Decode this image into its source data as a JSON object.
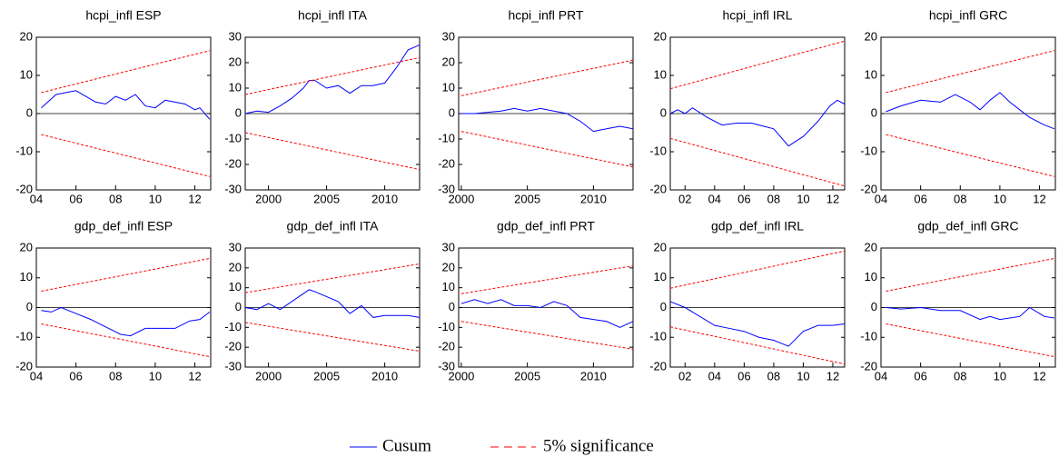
{
  "chart_data": [
    {
      "type": "line",
      "title": "hcpi_infl ESP",
      "xlim": [
        2004,
        2012.8
      ],
      "ylim": [
        -20,
        20
      ],
      "xticks": [
        {
          "value": 2004,
          "label": "04"
        },
        {
          "value": 2006,
          "label": "06"
        },
        {
          "value": 2008,
          "label": "08"
        },
        {
          "value": 2010,
          "label": "10"
        },
        {
          "value": 2012,
          "label": "12"
        }
      ],
      "yticks": [
        -20,
        -10,
        0,
        10,
        20
      ],
      "series": [
        {
          "color": "#0000ff",
          "x": [
            2004.25,
            2005,
            2006,
            2007,
            2007.5,
            2008,
            2008.5,
            2009,
            2009.5,
            2010,
            2010.5,
            2011,
            2011.5,
            2012,
            2012.25,
            2012.75
          ],
          "values": [
            1.5,
            5,
            6,
            3,
            2.5,
            4.5,
            3.5,
            5,
            2,
            1.5,
            3.5,
            3,
            2.5,
            1,
            1.5,
            -1.5
          ]
        },
        {
          "color": "#ff0000",
          "dashed": true,
          "x": [
            2004.25,
            2012.75
          ],
          "values": [
            5.5,
            16.5
          ]
        },
        {
          "color": "#ff0000",
          "dashed": true,
          "x": [
            2004.25,
            2012.75
          ],
          "values": [
            -5.5,
            -16.5
          ]
        }
      ]
    },
    {
      "type": "line",
      "title": "hcpi_infl ITA",
      "xlim": [
        1998,
        2013
      ],
      "ylim": [
        -30,
        30
      ],
      "xticks": [
        2000,
        2005,
        2010
      ],
      "yticks": [
        -30,
        -20,
        -10,
        0,
        10,
        20,
        30
      ],
      "series": [
        {
          "color": "#0000ff",
          "x": [
            1998,
            1999,
            2000,
            2001,
            2002,
            2003,
            2003.5,
            2004,
            2005,
            2006,
            2007,
            2008,
            2009,
            2010,
            2011,
            2012,
            2013
          ],
          "values": [
            0,
            1,
            0.5,
            3,
            6,
            10,
            13,
            13,
            10,
            11,
            8,
            11,
            11,
            12,
            18,
            25,
            27
          ]
        },
        {
          "color": "#ff0000",
          "dashed": true,
          "x": [
            1998,
            2013
          ],
          "values": [
            7.5,
            22
          ]
        },
        {
          "color": "#ff0000",
          "dashed": true,
          "x": [
            1998,
            2013
          ],
          "values": [
            -7.5,
            -22
          ]
        }
      ]
    },
    {
      "type": "line",
      "title": "hcpi_infl PRT",
      "xlim": [
        1999.8,
        2013
      ],
      "ylim": [
        -30,
        30
      ],
      "xticks": [
        2000,
        2005,
        2010
      ],
      "yticks": [
        -30,
        -20,
        -10,
        0,
        10,
        20,
        30
      ],
      "series": [
        {
          "color": "#0000ff",
          "x": [
            2000,
            2001,
            2003,
            2004,
            2005,
            2006,
            2007,
            2008,
            2009,
            2010,
            2011,
            2012,
            2013
          ],
          "values": [
            0,
            0,
            1,
            2,
            1,
            2,
            1,
            0,
            -3,
            -7,
            -6,
            -5,
            -6
          ]
        },
        {
          "color": "#ff0000",
          "dashed": true,
          "x": [
            2000,
            2013
          ],
          "values": [
            7,
            21
          ]
        },
        {
          "color": "#ff0000",
          "dashed": true,
          "x": [
            2000,
            2013
          ],
          "values": [
            -7,
            -21
          ]
        }
      ]
    },
    {
      "type": "line",
      "title": "hcpi_infl IRL",
      "xlim": [
        2001,
        2012.8
      ],
      "ylim": [
        -20,
        20
      ],
      "xticks": [
        {
          "value": 2002,
          "label": "02"
        },
        {
          "value": 2004,
          "label": "04"
        },
        {
          "value": 2006,
          "label": "06"
        },
        {
          "value": 2008,
          "label": "08"
        },
        {
          "value": 2010,
          "label": "10"
        },
        {
          "value": 2012,
          "label": "12"
        }
      ],
      "yticks": [
        -20,
        -10,
        0,
        10,
        20
      ],
      "series": [
        {
          "color": "#0000ff",
          "x": [
            2001,
            2001.5,
            2002,
            2002.5,
            2003.5,
            2004.5,
            2005.5,
            2006.5,
            2007,
            2008,
            2009,
            2010,
            2011,
            2011.8,
            2012.3,
            2012.8
          ],
          "values": [
            0,
            1,
            0,
            1.5,
            -1,
            -3,
            -2.5,
            -2.5,
            -3,
            -4,
            -8.5,
            -6,
            -2,
            2,
            3.5,
            2.5
          ]
        },
        {
          "color": "#ff0000",
          "dashed": true,
          "x": [
            2001,
            2012.8
          ],
          "values": [
            6.5,
            19
          ]
        },
        {
          "color": "#ff0000",
          "dashed": true,
          "x": [
            2001,
            2012.8
          ],
          "values": [
            -6.5,
            -19
          ]
        }
      ]
    },
    {
      "type": "line",
      "title": "hcpi_infl GRC",
      "xlim": [
        2004,
        2012.8
      ],
      "ylim": [
        -20,
        20
      ],
      "xticks": [
        {
          "value": 2004,
          "label": "04"
        },
        {
          "value": 2006,
          "label": "06"
        },
        {
          "value": 2008,
          "label": "08"
        },
        {
          "value": 2010,
          "label": "10"
        },
        {
          "value": 2012,
          "label": "12"
        }
      ],
      "yticks": [
        -20,
        -10,
        0,
        10,
        20
      ],
      "series": [
        {
          "color": "#0000ff",
          "x": [
            2004.25,
            2005,
            2006,
            2007,
            2007.75,
            2008.5,
            2009,
            2009.5,
            2010,
            2010.5,
            2011,
            2011.5,
            2012.25,
            2012.75
          ],
          "values": [
            0.5,
            2,
            3.5,
            3,
            5,
            3,
            1,
            3.5,
            5.5,
            3,
            1,
            -1,
            -3,
            -4
          ]
        },
        {
          "color": "#ff0000",
          "dashed": true,
          "x": [
            2004.25,
            2012.75
          ],
          "values": [
            5.5,
            16.5
          ]
        },
        {
          "color": "#ff0000",
          "dashed": true,
          "x": [
            2004.25,
            2012.75
          ],
          "values": [
            -5.5,
            -16.5
          ]
        }
      ]
    },
    {
      "type": "line",
      "title": "gdp_def_infl ESP",
      "xlim": [
        2004,
        2012.8
      ],
      "ylim": [
        -20,
        20
      ],
      "xticks": [
        {
          "value": 2004,
          "label": "04"
        },
        {
          "value": 2006,
          "label": "06"
        },
        {
          "value": 2008,
          "label": "08"
        },
        {
          "value": 2010,
          "label": "10"
        },
        {
          "value": 2012,
          "label": "12"
        }
      ],
      "yticks": [
        -20,
        -10,
        0,
        10,
        20
      ],
      "series": [
        {
          "color": "#0000ff",
          "x": [
            2004.25,
            2004.75,
            2005.25,
            2006,
            2006.75,
            2007.5,
            2008.25,
            2008.75,
            2009.5,
            2010,
            2011,
            2011.75,
            2012.25,
            2012.75
          ],
          "values": [
            -1,
            -1.5,
            0,
            -2,
            -4,
            -6.5,
            -9,
            -9.5,
            -7,
            -7,
            -7,
            -4.5,
            -4,
            -1.5
          ]
        },
        {
          "color": "#ff0000",
          "dashed": true,
          "x": [
            2004.25,
            2012.75
          ],
          "values": [
            5.5,
            16.5
          ]
        },
        {
          "color": "#ff0000",
          "dashed": true,
          "x": [
            2004.25,
            2012.75
          ],
          "values": [
            -5.5,
            -16.5
          ]
        }
      ]
    },
    {
      "type": "line",
      "title": "gdp_def_infl ITA",
      "xlim": [
        1998,
        2013
      ],
      "ylim": [
        -30,
        30
      ],
      "xticks": [
        2000,
        2005,
        2010
      ],
      "yticks": [
        -30,
        -20,
        -10,
        0,
        10,
        20,
        30
      ],
      "series": [
        {
          "color": "#0000ff",
          "x": [
            1998,
            1999,
            2000,
            2001,
            2002,
            2003,
            2003.5,
            2004,
            2006,
            2007,
            2008,
            2009,
            2010,
            2011,
            2012,
            2013
          ],
          "values": [
            0,
            -1,
            2,
            -1,
            3,
            7,
            9,
            8,
            3,
            -3,
            1,
            -5,
            -4,
            -4,
            -4,
            -5
          ]
        },
        {
          "color": "#ff0000",
          "dashed": true,
          "x": [
            1998,
            2013
          ],
          "values": [
            7.5,
            22
          ]
        },
        {
          "color": "#ff0000",
          "dashed": true,
          "x": [
            1998,
            2013
          ],
          "values": [
            -7.5,
            -22
          ]
        }
      ]
    },
    {
      "type": "line",
      "title": "gdp_def_infl PRT",
      "xlim": [
        1999.8,
        2013
      ],
      "ylim": [
        -30,
        30
      ],
      "xticks": [
        2000,
        2005,
        2010
      ],
      "yticks": [
        -30,
        -20,
        -10,
        0,
        10,
        20,
        30
      ],
      "series": [
        {
          "color": "#0000ff",
          "x": [
            2000,
            2001,
            2002,
            2003,
            2004,
            2005,
            2006,
            2007,
            2008,
            2009,
            2010,
            2011,
            2012,
            2013
          ],
          "values": [
            2,
            4,
            2,
            4,
            1,
            1,
            0,
            3,
            1,
            -5,
            -6,
            -7,
            -10,
            -7
          ]
        },
        {
          "color": "#ff0000",
          "dashed": true,
          "x": [
            2000,
            2013
          ],
          "values": [
            7,
            21
          ]
        },
        {
          "color": "#ff0000",
          "dashed": true,
          "x": [
            2000,
            2013
          ],
          "values": [
            -7,
            -21
          ]
        }
      ]
    },
    {
      "type": "line",
      "title": "gdp_def_infl IRL",
      "xlim": [
        2001,
        2012.8
      ],
      "ylim": [
        -20,
        20
      ],
      "xticks": [
        {
          "value": 2002,
          "label": "02"
        },
        {
          "value": 2004,
          "label": "04"
        },
        {
          "value": 2006,
          "label": "06"
        },
        {
          "value": 2008,
          "label": "08"
        },
        {
          "value": 2010,
          "label": "10"
        },
        {
          "value": 2012,
          "label": "12"
        }
      ],
      "yticks": [
        -20,
        -10,
        0,
        10,
        20
      ],
      "series": [
        {
          "color": "#0000ff",
          "x": [
            2001,
            2002,
            2003,
            2004,
            2005,
            2006,
            2007,
            2008,
            2008.5,
            2009,
            2010,
            2011,
            2012,
            2012.8
          ],
          "values": [
            2,
            0,
            -3,
            -6,
            -7,
            -8,
            -10,
            -11,
            -12,
            -13,
            -8,
            -6,
            -6,
            -5.5
          ]
        },
        {
          "color": "#ff0000",
          "dashed": true,
          "x": [
            2001,
            2012.8
          ],
          "values": [
            6.5,
            19
          ]
        },
        {
          "color": "#ff0000",
          "dashed": true,
          "x": [
            2001,
            2012.8
          ],
          "values": [
            -6.5,
            -19
          ]
        }
      ]
    },
    {
      "type": "line",
      "title": "gdp_def_infl GRC",
      "xlim": [
        2004,
        2012.8
      ],
      "ylim": [
        -20,
        20
      ],
      "xticks": [
        {
          "value": 2004,
          "label": "04"
        },
        {
          "value": 2006,
          "label": "06"
        },
        {
          "value": 2008,
          "label": "08"
        },
        {
          "value": 2010,
          "label": "10"
        },
        {
          "value": 2012,
          "label": "12"
        }
      ],
      "yticks": [
        -20,
        -10,
        0,
        10,
        20
      ],
      "series": [
        {
          "color": "#0000ff",
          "x": [
            2004.25,
            2005,
            2006,
            2007,
            2008,
            2009,
            2009.5,
            2010,
            2011,
            2011.5,
            2012.25,
            2012.75
          ],
          "values": [
            0,
            -0.5,
            0,
            -1,
            -1,
            -4,
            -3,
            -4,
            -3,
            0,
            -3,
            -3.5
          ]
        },
        {
          "color": "#ff0000",
          "dashed": true,
          "x": [
            2004.25,
            2012.75
          ],
          "values": [
            5.5,
            16.5
          ]
        },
        {
          "color": "#ff0000",
          "dashed": true,
          "x": [
            2004.25,
            2012.75
          ],
          "values": [
            -5.5,
            -16.5
          ]
        }
      ]
    }
  ],
  "legend": [
    {
      "name": "Cusum",
      "color": "#0000ff"
    },
    {
      "name": "5% significance",
      "color": "#ff0000",
      "dashed": true
    }
  ]
}
